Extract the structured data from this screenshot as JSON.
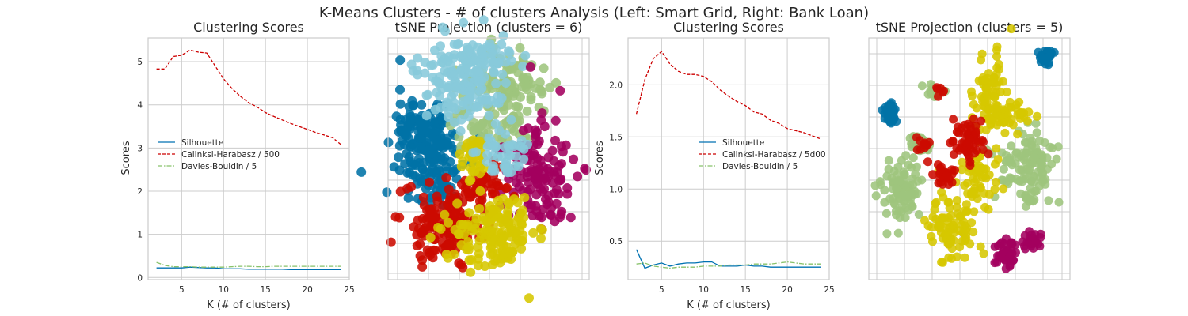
{
  "suptitle": "K-Means Clusters - # of clusters Analysis (Left: Smart Grid, Right: Bank Loan)",
  "colors": {
    "silhouette": "#0072b2",
    "calinski": "#cc0000",
    "davies": "#88c26a",
    "cluster_blue": "#0072a6",
    "cluster_green": "#9ec57d",
    "cluster_red": "#cc0a00",
    "cluster_magenta": "#a3005f",
    "cluster_yellow": "#d6c700",
    "cluster_cyan": "#87c9db"
  },
  "chart_data": [
    {
      "type": "line",
      "title": "Clustering Scores",
      "xlabel": "K (# of clusters)",
      "ylabel": "Scores",
      "xlim": [
        1,
        25
      ],
      "ylim": [
        -0.05,
        5.55
      ],
      "xticks": [
        5,
        10,
        15,
        20,
        25
      ],
      "yticks": [
        0,
        1,
        2,
        3,
        4,
        5
      ],
      "legend": "center-left",
      "x": [
        2,
        3,
        4,
        5,
        6,
        7,
        8,
        9,
        10,
        11,
        12,
        13,
        14,
        15,
        16,
        17,
        18,
        19,
        20,
        21,
        22,
        23,
        24
      ],
      "series": [
        {
          "name": "Silhouette",
          "values": [
            0.22,
            0.22,
            0.22,
            0.22,
            0.24,
            0.23,
            0.22,
            0.22,
            0.2,
            0.2,
            0.2,
            0.19,
            0.19,
            0.19,
            0.19,
            0.19,
            0.18,
            0.18,
            0.18,
            0.18,
            0.18,
            0.18,
            0.18
          ]
        },
        {
          "name": "Calinksi-Harabasz / 500",
          "values": [
            4.83,
            4.83,
            5.12,
            5.15,
            5.27,
            5.22,
            5.2,
            4.9,
            4.6,
            4.38,
            4.2,
            4.05,
            3.95,
            3.82,
            3.73,
            3.65,
            3.57,
            3.5,
            3.43,
            3.36,
            3.3,
            3.24,
            3.08
          ]
        },
        {
          "name": "Davies-Bouldin / 5",
          "values": [
            0.35,
            0.28,
            0.25,
            0.25,
            0.25,
            0.24,
            0.24,
            0.24,
            0.24,
            0.25,
            0.26,
            0.26,
            0.25,
            0.25,
            0.26,
            0.26,
            0.26,
            0.26,
            0.26,
            0.26,
            0.26,
            0.26,
            0.26
          ]
        }
      ]
    },
    {
      "type": "scatter",
      "title": "tSNE Projection (clusters = 6)",
      "xlabel": "",
      "ylabel": ""
    },
    {
      "type": "line",
      "title": "Clustering Scores",
      "xlabel": "K (# of clusters)",
      "ylabel": "Scores",
      "xlim": [
        1,
        25
      ],
      "ylim": [
        0.13,
        2.45
      ],
      "xticks": [
        5,
        10,
        15,
        20,
        25
      ],
      "yticks": [
        0.5,
        1.0,
        1.5,
        2.0
      ],
      "yticklabels": [
        "0.5",
        "1.0",
        "1.5",
        "2.0"
      ],
      "legend": "center-right",
      "x": [
        2,
        3,
        4,
        5,
        6,
        7,
        8,
        9,
        10,
        11,
        12,
        13,
        14,
        15,
        16,
        17,
        18,
        19,
        20,
        21,
        22,
        23,
        24
      ],
      "series": [
        {
          "name": "Silhouette",
          "values": [
            0.42,
            0.24,
            0.27,
            0.29,
            0.26,
            0.28,
            0.29,
            0.29,
            0.3,
            0.3,
            0.26,
            0.26,
            0.26,
            0.27,
            0.26,
            0.26,
            0.25,
            0.25,
            0.25,
            0.25,
            0.25,
            0.25,
            0.25
          ]
        },
        {
          "name": "Calinksi-Harabasz / 5d00",
          "values": [
            1.72,
            2.05,
            2.25,
            2.32,
            2.2,
            2.13,
            2.1,
            2.1,
            2.08,
            2.03,
            1.95,
            1.89,
            1.84,
            1.8,
            1.74,
            1.72,
            1.66,
            1.63,
            1.58,
            1.56,
            1.54,
            1.51,
            1.48
          ]
        },
        {
          "name": "Davies-Bouldin / 5",
          "values": [
            0.28,
            0.29,
            0.26,
            0.25,
            0.24,
            0.25,
            0.25,
            0.25,
            0.26,
            0.26,
            0.26,
            0.27,
            0.27,
            0.27,
            0.28,
            0.28,
            0.28,
            0.29,
            0.3,
            0.29,
            0.28,
            0.28,
            0.28
          ]
        }
      ]
    },
    {
      "type": "scatter",
      "title": "tSNE Projection (clusters = 5)",
      "xlabel": "",
      "ylabel": ""
    }
  ]
}
